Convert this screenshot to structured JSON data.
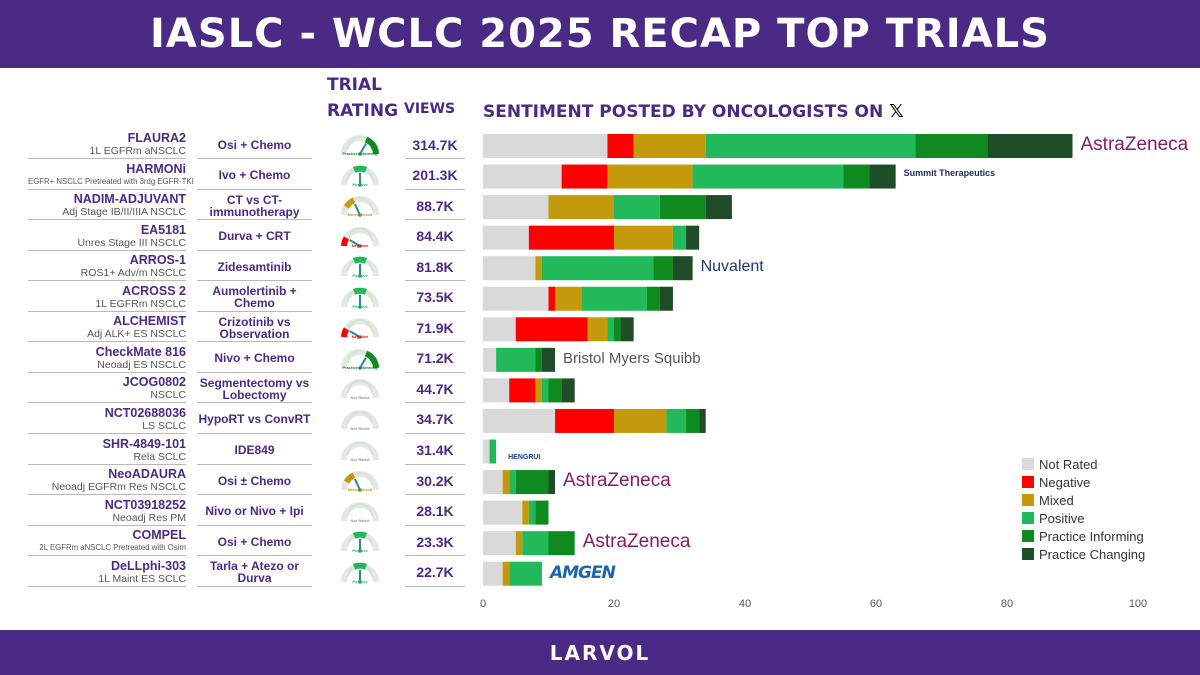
{
  "header": {
    "title": "IASLC - WCLC 2025 RECAP TOP TRIALS"
  },
  "footer": {
    "brand": "LARVOL"
  },
  "columns": {
    "trial_line1": "TRIAL",
    "rating": "RATING",
    "views": "VIEWS",
    "sentiment": "SENTIMENT POSTED BY ONCOLOGISTS ON",
    "x_logo": "𝕏"
  },
  "colors": {
    "brand": "#4b2a86",
    "Not Rated": "#d9d9d9",
    "Negative": "#ff0000",
    "Mixed": "#c49a0c",
    "Positive": "#22b95a",
    "Practice Informing": "#0f8a1e",
    "Practice Changing": "#1e4d27"
  },
  "gauge_labels": {
    "practice_informing": "Practice Informing",
    "positive": "Positive",
    "mixed": "Mixed Result",
    "negative": "Negative",
    "not_rated": "Not Rated"
  },
  "trials": [
    {
      "name": "FLAURA2",
      "sub": "1L EGFRm aNSCLC",
      "regimen": "Osi + Chemo",
      "views": "314.7K",
      "rating": "practice_informing",
      "logo": "AstraZeneca"
    },
    {
      "name": "HARMONi",
      "sub": "EGFR+ NSCLC Pretreated with 3rdg EGFR-TKI",
      "regimen": "Ivo + Chemo",
      "views": "201.3K",
      "rating": "positive",
      "logo": "Summit Therapeutics"
    },
    {
      "name": "NADIM-ADJUVANT",
      "sub": "Adj Stage IB/II/IIIA NSCLC",
      "regimen": "CT vs CT-immunotherapy",
      "views": "88.7K",
      "rating": "mixed",
      "logo": ""
    },
    {
      "name": "EA5181",
      "sub": "Unres Stage III NSCLC",
      "regimen": "Durva + CRT",
      "views": "84.4K",
      "rating": "negative",
      "logo": ""
    },
    {
      "name": "ARROS-1",
      "sub": "ROS1+ Adv/m NSCLC",
      "regimen": "Zidesamtinib",
      "views": "81.8K",
      "rating": "positive",
      "logo": "Nuvalent"
    },
    {
      "name": "ACROSS 2",
      "sub": "1L EGFRm NSCLC",
      "regimen": "Aumolertinib + Chemo",
      "views": "73.5K",
      "rating": "positive",
      "logo": ""
    },
    {
      "name": "ALCHEMIST",
      "sub": "Adj ALK+ ES NSCLC",
      "regimen": "Crizotinib vs Observation",
      "views": "71.9K",
      "rating": "negative",
      "logo": ""
    },
    {
      "name": "CheckMate 816",
      "sub": "Neoadj ES NSCLC",
      "regimen": "Nivo + Chemo",
      "views": "71.2K",
      "rating": "practice_informing",
      "logo": "Bristol Myers Squibb"
    },
    {
      "name": "JCOG0802",
      "sub": "NSCLC",
      "regimen": "Segmentectomy vs Lobectomy",
      "views": "44.7K",
      "rating": "not_rated",
      "logo": ""
    },
    {
      "name": "NCT02688036",
      "sub": "LS SCLC",
      "regimen": "HypoRT vs ConvRT",
      "views": "34.7K",
      "rating": "not_rated",
      "logo": ""
    },
    {
      "name": "SHR-4849-101",
      "sub": "Rela SCLC",
      "regimen": "IDE849",
      "views": "31.4K",
      "rating": "not_rated",
      "logo": "HENGRUI"
    },
    {
      "name": "NeoADAURA",
      "sub": "Neoadj EGFRm Res NSCLC",
      "regimen": "Osi ± Chemo",
      "views": "30.2K",
      "rating": "mixed",
      "logo": "AstraZeneca"
    },
    {
      "name": "NCT03918252",
      "sub": "Neoadj Res PM",
      "regimen": "Nivo or Nivo + Ipi",
      "views": "28.1K",
      "rating": "not_rated",
      "logo": ""
    },
    {
      "name": "COMPEL",
      "sub": "2L EGFRm aNSCLC Pretreated with Osim",
      "regimen": "Osi + Chemo",
      "views": "23.3K",
      "rating": "positive",
      "logo": "AstraZeneca"
    },
    {
      "name": "DeLLphi-303",
      "sub": "1L Maint ES SCLC",
      "regimen": "Tarla + Atezo or Durva",
      "views": "22.7K",
      "rating": "positive",
      "logo": "AMGEN"
    }
  ],
  "chart_data": {
    "type": "bar",
    "orientation": "horizontal",
    "stacked": true,
    "title": "SENTIMENT POSTED BY ONCOLOGISTS ON X",
    "xlim": [
      0,
      100
    ],
    "xticks": [
      0,
      20,
      40,
      60,
      80,
      100
    ],
    "categories": [
      "FLAURA2",
      "HARMONi",
      "NADIM-ADJUVANT",
      "EA5181",
      "ARROS-1",
      "ACROSS 2",
      "ALCHEMIST",
      "CheckMate 816",
      "JCOG0802",
      "NCT02688036",
      "SHR-4849-101",
      "NeoADAURA",
      "NCT03918252",
      "COMPEL",
      "DeLLphi-303"
    ],
    "series": [
      {
        "name": "Not Rated",
        "values": [
          19,
          12,
          10,
          7,
          8,
          10,
          5,
          2,
          4,
          11,
          1,
          3,
          6,
          5,
          3
        ]
      },
      {
        "name": "Negative",
        "values": [
          4,
          7,
          0,
          13,
          0,
          1,
          11,
          0,
          4,
          9,
          0,
          0,
          0,
          0,
          0
        ]
      },
      {
        "name": "Mixed",
        "values": [
          11,
          13,
          10,
          9,
          1,
          4,
          3,
          0,
          1,
          8,
          0,
          1,
          1,
          1,
          1
        ]
      },
      {
        "name": "Positive",
        "values": [
          32,
          23,
          7,
          2,
          17,
          10,
          1,
          6,
          1,
          3,
          1,
          1,
          1,
          4,
          5
        ]
      },
      {
        "name": "Practice Informing",
        "values": [
          11,
          4,
          7,
          0,
          3,
          2,
          1,
          1,
          2,
          2,
          0,
          5,
          2,
          4,
          0
        ]
      },
      {
        "name": "Practice Changing",
        "values": [
          13,
          4,
          4,
          2,
          3,
          2,
          2,
          2,
          2,
          1,
          0,
          1,
          0,
          0,
          0
        ]
      }
    ],
    "legend": [
      "Not Rated",
      "Negative",
      "Mixed",
      "Positive",
      "Practice Informing",
      "Practice Changing"
    ],
    "legend_position": "bottom-right"
  }
}
